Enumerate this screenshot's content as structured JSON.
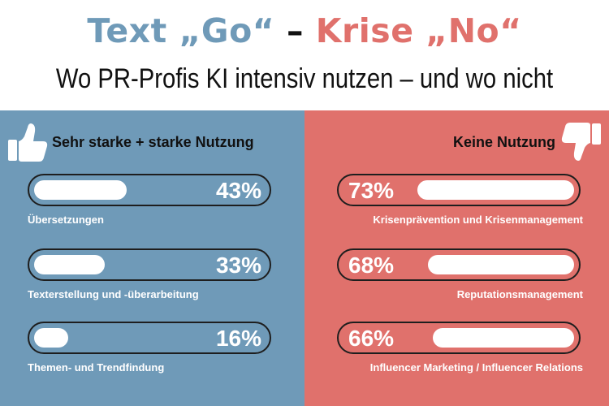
{
  "header": {
    "title_part1": "Text „Go“",
    "title_sep": " – ",
    "title_part2": "Krise „No“",
    "subtitle": "Wo PR-Profis KI intensiv nutzen – und wo nicht"
  },
  "colors": {
    "left_panel": "#6f9ab8",
    "right_panel": "#e0716c",
    "bar_fill": "#ffffff",
    "bar_outline": "#1e1e1e"
  },
  "left_panel": {
    "heading": "Sehr starke + starke Nutzung",
    "icon": "thumbs-up-icon"
  },
  "right_panel": {
    "heading": "Keine Nutzung",
    "icon": "thumbs-down-icon"
  },
  "chart_data": [
    {
      "type": "bar",
      "title": "Sehr starke + starke Nutzung",
      "categories": [
        "Übersetzungen",
        "Texterstellung und -überarbeitung",
        "Themen- und Trendfindung"
      ],
      "values": [
        43,
        33,
        16
      ],
      "value_labels": [
        "43%",
        "33%",
        "16%"
      ],
      "ylim": [
        0,
        100
      ]
    },
    {
      "type": "bar",
      "title": "Keine Nutzung",
      "categories": [
        "Krisenprävention und Krisenmanagement",
        "Reputationsmanagement",
        "Influencer Marketing / Influencer Relations"
      ],
      "values": [
        73,
        68,
        66
      ],
      "value_labels": [
        "73%",
        "68%",
        "66%"
      ],
      "ylim": [
        0,
        100
      ]
    }
  ]
}
